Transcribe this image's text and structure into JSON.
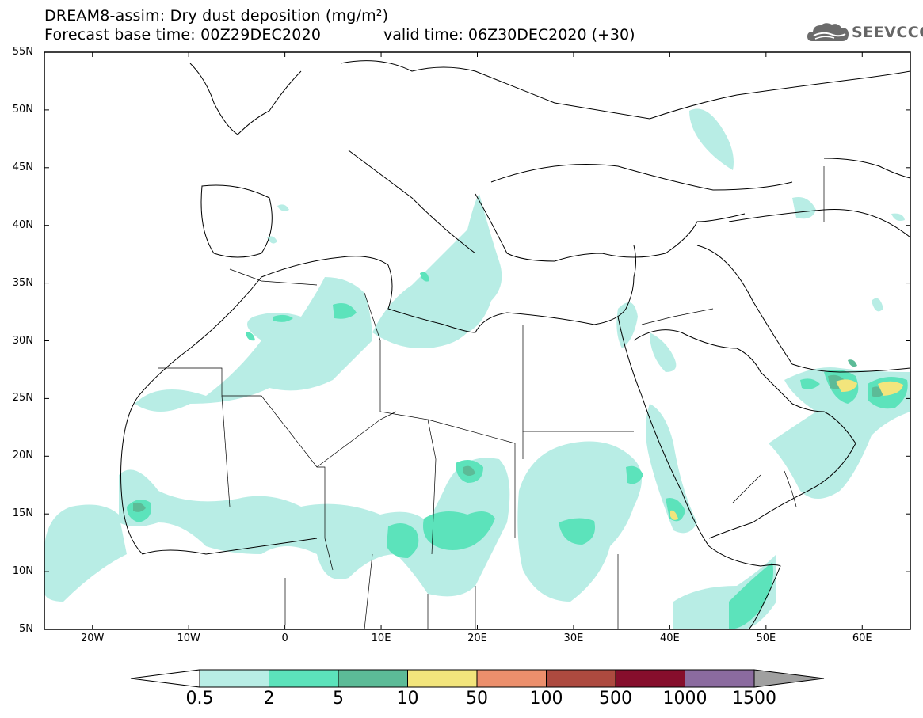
{
  "header": {
    "title_line1": "DREAM8-assim: Dry dust deposition (mg/m²)",
    "title_line2": "Forecast base time: 00Z29DEC2020",
    "valid_time": "valid time: 06Z30DEC2020 (+30)",
    "logo_text": "SEEVCCC",
    "logo_icon": "cloud-icon"
  },
  "map": {
    "lat_labels": [
      "55N",
      "50N",
      "45N",
      "40N",
      "35N",
      "30N",
      "25N",
      "20N",
      "15N",
      "10N",
      "5N"
    ],
    "lon_labels": [
      "20W",
      "10W",
      "0",
      "10E",
      "20E",
      "30E",
      "40E",
      "50E",
      "60E"
    ],
    "lat_range": [
      5,
      55
    ],
    "lon_range": [
      -25,
      65
    ],
    "background": "#ffffff",
    "coastline_color": "#000000"
  },
  "colorbar": {
    "labels": [
      "0.5",
      "2",
      "5",
      "10",
      "50",
      "100",
      "500",
      "1000",
      "1500"
    ],
    "colors": [
      "#b8ede5",
      "#5ce3bb",
      "#5cbb97",
      "#f3e57c",
      "#ec8f6c",
      "#ad4a3f",
      "#860e2c",
      "#8b6b9f"
    ],
    "under_color": "#ffffff",
    "over_color": "#a0a0a0"
  }
}
